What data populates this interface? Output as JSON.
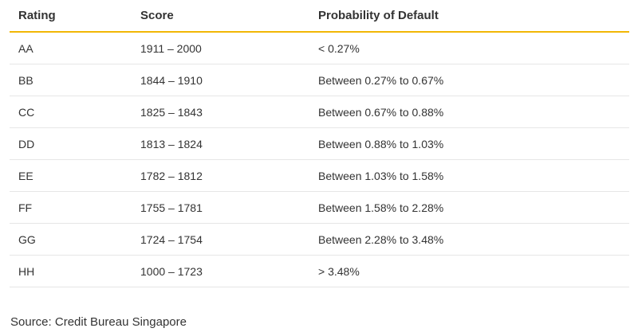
{
  "table": {
    "headers": [
      "Rating",
      "Score",
      "Probability of Default"
    ],
    "rows": [
      [
        "AA",
        "1911 – 2000",
        "< 0.27%"
      ],
      [
        "BB",
        "1844 – 1910",
        "Between 0.27% to 0.67%"
      ],
      [
        "CC",
        "1825 – 1843",
        "Between 0.67% to 0.88%"
      ],
      [
        "DD",
        "1813 – 1824",
        "Between 0.88% to 1.03%"
      ],
      [
        "EE",
        "1782 – 1812",
        "Between 1.03% to 1.58%"
      ],
      [
        "FF",
        "1755 – 1781",
        "Between 1.58% to 2.28%"
      ],
      [
        "GG",
        "1724 – 1754",
        "Between 2.28% to 3.48%"
      ],
      [
        "HH",
        "1000 – 1723",
        "> 3.48%"
      ]
    ]
  },
  "source": "Source: Credit Bureau Singapore",
  "colors": {
    "header_rule": "#f2b705",
    "row_rule": "#e6e6e6",
    "text": "#333333"
  }
}
